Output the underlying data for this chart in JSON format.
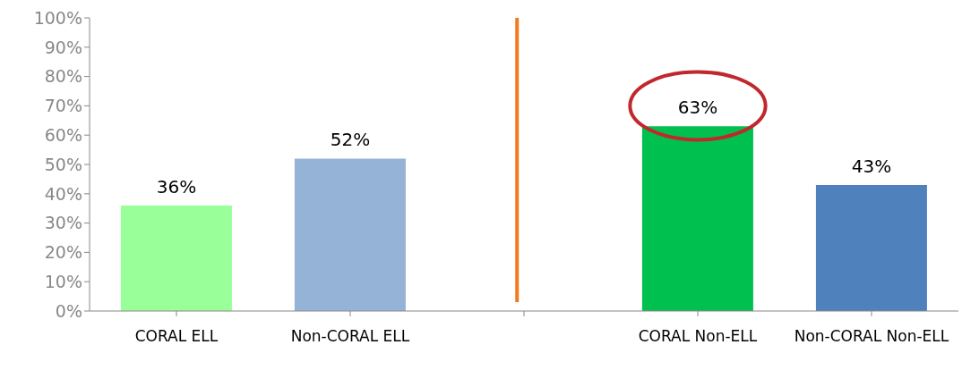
{
  "chart_data": {
    "type": "bar",
    "categories": [
      "CORAL ELL",
      "Non-CORAL ELL",
      null,
      "CORAL Non-ELL",
      "Non-CORAL Non-ELL"
    ],
    "values": [
      36,
      52,
      null,
      63,
      43
    ],
    "colors": [
      "#99ff99",
      "#95b3d7",
      null,
      "#00c050",
      "#4f81bd"
    ],
    "value_labels": [
      "36%",
      "52%",
      null,
      "63%",
      "43%"
    ],
    "ylim": [
      0,
      100
    ],
    "yticks": [
      {
        "value": 0,
        "label": "0%"
      },
      {
        "value": 10,
        "label": "10%"
      },
      {
        "value": 20,
        "label": "20%"
      },
      {
        "value": 30,
        "label": "30%"
      },
      {
        "value": 40,
        "label": "40%"
      },
      {
        "value": 50,
        "label": "50%"
      },
      {
        "value": 60,
        "label": "60%"
      },
      {
        "value": 70,
        "label": "70%"
      },
      {
        "value": 80,
        "label": "80%"
      },
      {
        "value": 90,
        "label": "90%"
      },
      {
        "value": 100,
        "label": "100%"
      }
    ],
    "grid": false,
    "legend": false
  }
}
